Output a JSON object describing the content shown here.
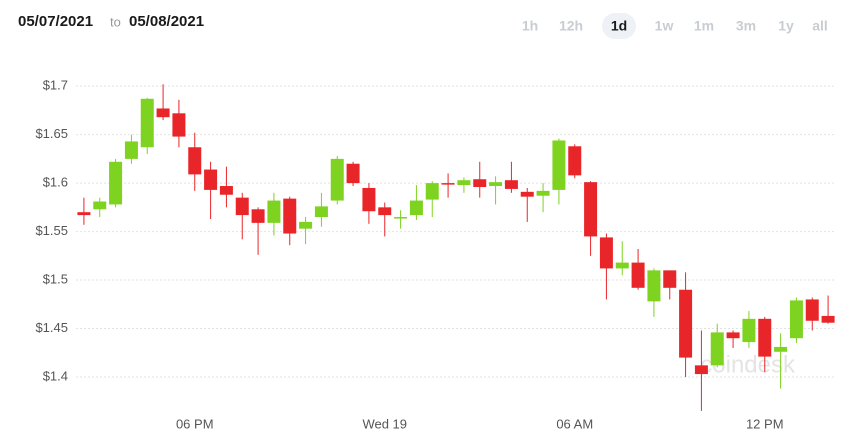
{
  "header": {
    "from": "05/07/2021",
    "separator": "to",
    "to": "05/08/2021",
    "ranges": [
      "1h",
      "12h",
      "1d",
      "1w",
      "1m",
      "3m",
      "1y",
      "all"
    ],
    "active_range": "1d"
  },
  "watermark": "coindesk",
  "chart_data": {
    "type": "candlestick",
    "categories": [
      null,
      null,
      null,
      null,
      null,
      null,
      null,
      "06 PM",
      null,
      null,
      null,
      null,
      null,
      null,
      null,
      null,
      null,
      null,
      null,
      "Wed 19",
      null,
      null,
      null,
      null,
      null,
      null,
      null,
      null,
      null,
      null,
      null,
      "06 AM",
      null,
      null,
      null,
      null,
      null,
      null,
      null,
      null,
      null,
      null,
      null,
      "12 PM",
      null,
      null,
      null,
      null
    ],
    "series": [
      {
        "up_color": "#7ed321",
        "down_color": "#e8262a",
        "open": [
          1.57,
          1.573,
          1.578,
          1.625,
          1.637,
          1.677,
          1.672,
          1.637,
          1.614,
          1.597,
          1.585,
          1.573,
          1.559,
          1.584,
          1.553,
          1.565,
          1.582,
          1.62,
          1.595,
          1.575,
          1.564,
          1.567,
          1.583,
          1.6,
          1.598,
          1.604,
          1.597,
          1.603,
          1.591,
          1.587,
          1.593,
          1.638,
          1.601,
          1.544,
          1.512,
          1.518,
          1.478,
          1.51,
          1.49,
          1.412,
          1.412,
          1.446,
          1.436,
          1.46,
          1.426,
          1.44,
          1.48,
          1.463
        ],
        "high": [
          1.585,
          1.585,
          1.625,
          1.65,
          1.688,
          1.702,
          1.686,
          1.652,
          1.622,
          1.617,
          1.59,
          1.575,
          1.59,
          1.586,
          1.565,
          1.59,
          1.628,
          1.622,
          1.6,
          1.58,
          1.572,
          1.598,
          1.602,
          1.61,
          1.606,
          1.622,
          1.607,
          1.622,
          1.595,
          1.6,
          1.646,
          1.64,
          1.602,
          1.548,
          1.54,
          1.532,
          1.512,
          1.51,
          1.508,
          1.448,
          1.455,
          1.448,
          1.468,
          1.462,
          1.445,
          1.482,
          1.482,
          1.484
        ],
        "low": [
          1.557,
          1.565,
          1.575,
          1.62,
          1.63,
          1.665,
          1.637,
          1.592,
          1.563,
          1.575,
          1.542,
          1.526,
          1.546,
          1.536,
          1.537,
          1.555,
          1.578,
          1.597,
          1.558,
          1.545,
          1.553,
          1.562,
          1.565,
          1.585,
          1.59,
          1.585,
          1.578,
          1.59,
          1.56,
          1.57,
          1.578,
          1.605,
          1.525,
          1.48,
          1.505,
          1.49,
          1.462,
          1.48,
          1.4,
          1.365,
          1.41,
          1.43,
          1.43,
          1.405,
          1.388,
          1.435,
          1.448,
          1.455
        ],
        "close": [
          1.567,
          1.581,
          1.622,
          1.643,
          1.687,
          1.668,
          1.648,
          1.609,
          1.593,
          1.588,
          1.567,
          1.559,
          1.582,
          1.548,
          1.56,
          1.576,
          1.625,
          1.6,
          1.571,
          1.567,
          1.565,
          1.582,
          1.6,
          1.599,
          1.603,
          1.596,
          1.601,
          1.594,
          1.586,
          1.592,
          1.644,
          1.608,
          1.545,
          1.512,
          1.518,
          1.492,
          1.51,
          1.492,
          1.42,
          1.403,
          1.446,
          1.44,
          1.46,
          1.421,
          1.431,
          1.479,
          1.458,
          1.456
        ]
      }
    ],
    "ylim": [
      1.335,
      1.727
    ],
    "yticks": [
      {
        "value": 1.4,
        "label": "$1.4"
      },
      {
        "value": 1.45,
        "label": "$1.45"
      },
      {
        "value": 1.5,
        "label": "$1.5"
      },
      {
        "value": 1.55,
        "label": "$1.55"
      },
      {
        "value": 1.6,
        "label": "$1.6"
      },
      {
        "value": 1.65,
        "label": "$1.65"
      },
      {
        "value": 1.7,
        "label": "$1.7"
      }
    ],
    "grid": true
  }
}
